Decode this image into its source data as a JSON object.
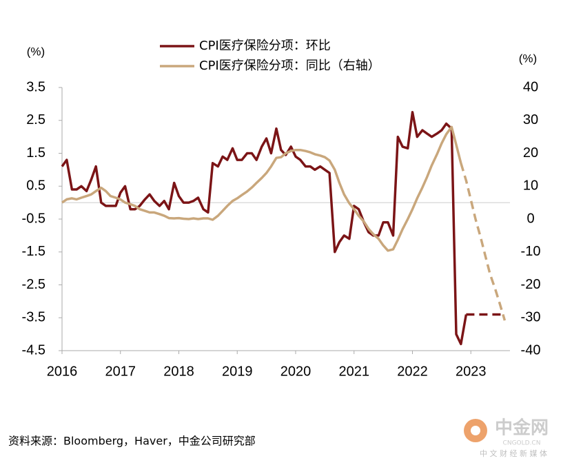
{
  "chart_data": {
    "type": "line",
    "unit_left": "(%)",
    "unit_right": "(%)",
    "x": [
      2016,
      2016.08,
      2016.17,
      2016.25,
      2016.33,
      2016.42,
      2016.5,
      2016.58,
      2016.67,
      2016.75,
      2016.83,
      2016.92,
      2017,
      2017.08,
      2017.17,
      2017.25,
      2017.33,
      2017.42,
      2017.5,
      2017.58,
      2017.67,
      2017.75,
      2017.83,
      2017.92,
      2018,
      2018.08,
      2018.17,
      2018.25,
      2018.33,
      2018.42,
      2018.5,
      2018.58,
      2018.67,
      2018.75,
      2018.83,
      2018.92,
      2019,
      2019.08,
      2019.17,
      2019.25,
      2019.33,
      2019.42,
      2019.5,
      2019.58,
      2019.67,
      2019.75,
      2019.83,
      2019.92,
      2020,
      2020.08,
      2020.17,
      2020.25,
      2020.33,
      2020.42,
      2020.5,
      2020.58,
      2020.67,
      2020.75,
      2020.83,
      2020.92,
      2021,
      2021.08,
      2021.17,
      2021.25,
      2021.33,
      2021.42,
      2021.5,
      2021.58,
      2021.67,
      2021.75,
      2021.83,
      2021.92,
      2022,
      2022.08,
      2022.17,
      2022.25,
      2022.33,
      2022.42,
      2022.5,
      2022.58,
      2022.67,
      2022.75,
      2022.83,
      2022.92,
      2023,
      2023.08,
      2023.17,
      2023.25,
      2023.33,
      2023.42,
      2023.5,
      2023.58
    ],
    "series": [
      {
        "name": "CPI医疗保险分项：环比",
        "color": "#7b1416",
        "dash_from": 83,
        "values": [
          1.1,
          1.3,
          0.4,
          0.4,
          0.5,
          0.35,
          0.7,
          1.1,
          0.0,
          -0.1,
          -0.1,
          -0.1,
          0.3,
          0.5,
          -0.2,
          -0.2,
          -0.1,
          0.1,
          0.25,
          0.05,
          -0.1,
          0.05,
          -0.2,
          0.6,
          0.2,
          0.0,
          0.0,
          0.05,
          0.15,
          -0.2,
          -0.3,
          1.2,
          1.1,
          1.4,
          1.3,
          1.65,
          1.3,
          1.3,
          1.5,
          1.5,
          1.3,
          1.7,
          1.95,
          1.5,
          2.25,
          1.6,
          1.45,
          1.7,
          1.4,
          1.3,
          1.1,
          1.1,
          1.0,
          1.1,
          1.0,
          0.9,
          -1.5,
          -1.2,
          -1.0,
          -1.1,
          -0.1,
          -0.2,
          -0.6,
          -0.9,
          -1.0,
          -1.0,
          -0.6,
          -0.6,
          -1.0,
          2.0,
          1.7,
          1.65,
          2.75,
          2.0,
          2.2,
          2.1,
          2.0,
          2.1,
          2.2,
          2.4,
          2.25,
          -4.0,
          -4.3,
          -3.4,
          -3.4,
          -3.4,
          -3.4,
          -3.4,
          -3.4,
          -3.4,
          -3.4,
          -3.4
        ]
      },
      {
        "name": "CPI医疗保险分项：同比（右轴）",
        "color": "#c9a77c",
        "axis": "y2",
        "dash_from": 82,
        "values": [
          5,
          6,
          6.3,
          6,
          6.5,
          7,
          7.5,
          8.5,
          9.5,
          8.5,
          7,
          6.5,
          6,
          5,
          4.5,
          4,
          3,
          2.5,
          2,
          2,
          1.5,
          1,
          0.3,
          0.2,
          0.3,
          0.1,
          0,
          0.2,
          0,
          0.2,
          0.2,
          -0.2,
          1,
          2.5,
          4,
          5.5,
          6.3,
          7.3,
          8.4,
          9.6,
          11,
          12.5,
          14,
          16,
          18.6,
          18.8,
          20,
          20.7,
          21,
          21,
          20.7,
          20.3,
          19.7,
          19.3,
          18.8,
          17.8,
          15,
          11,
          7.5,
          4.8,
          3,
          1,
          -0.8,
          -3,
          -4.6,
          -6,
          -8,
          -9.6,
          -9.2,
          -6.3,
          -3.1,
          0,
          3,
          6.3,
          9.6,
          12.8,
          16.3,
          19.7,
          23,
          25.8,
          28,
          22.6,
          17,
          11.7,
          5.9,
          0,
          -5.7,
          -11.3,
          -16.8,
          -21.4,
          -26,
          -30.8
        ]
      }
    ],
    "xlim": [
      2016,
      2023.67
    ],
    "xticks": [
      2016,
      2017,
      2018,
      2019,
      2020,
      2021,
      2022,
      2023
    ],
    "ylim": [
      -4.5,
      3.5
    ],
    "yticks": [
      3.5,
      2.5,
      1.5,
      0.5,
      -0.5,
      -1.5,
      -2.5,
      -3.5,
      -4.5
    ],
    "y2lim": [
      -40,
      40
    ],
    "y2ticks": [
      40,
      30,
      20,
      10,
      0,
      -10,
      -20,
      -30,
      -40
    ],
    "zero_line": true,
    "legend": "top"
  },
  "source": "资料来源：Bloomberg，Haver，中金公司研究部",
  "watermark": {
    "brand": "中金网",
    "domain": "CNGOLD.CN",
    "slogan": "中 文 财 经 新 媒 体"
  }
}
